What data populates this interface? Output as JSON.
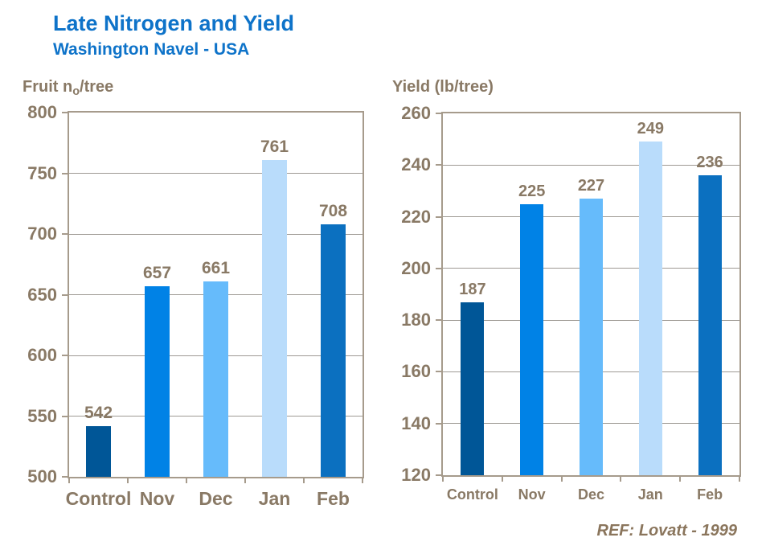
{
  "page": {
    "title": "Late Nitrogen and Yield",
    "subtitle": "Washington Navel - USA",
    "reference": "REF: Lovatt - 1999"
  },
  "colors": {
    "title_text": "#0E73C9",
    "label_text": "#897965",
    "reference_text": "#8A755C",
    "axis_border": "#A69B8C",
    "gridline": "#9E9A94",
    "bar_control": "#005697",
    "bar_nov": "#0082E6",
    "bar_dec": "#66BBFB",
    "bar_jan": "#B9DCFB",
    "bar_feb": "#0B70C0"
  },
  "chart_data": [
    {
      "type": "bar",
      "title": "Fruit no/tree",
      "title_parts": {
        "pre": "Fruit n",
        "sub": "o",
        "post": "/tree"
      },
      "categories": [
        "Control",
        "Nov",
        "Dec",
        "Jan",
        "Feb"
      ],
      "values": [
        542,
        657,
        661,
        761,
        708
      ],
      "ylim": [
        500,
        800
      ],
      "yticks": [
        500,
        550,
        600,
        650,
        700,
        750,
        800
      ],
      "grid": true,
      "legend": false,
      "data_labels": true,
      "bar_colors": [
        "#005697",
        "#0082E6",
        "#66BBFB",
        "#B9DCFB",
        "#0B70C0"
      ]
    },
    {
      "type": "bar",
      "title": "Yield (lb/tree)",
      "title_parts": {
        "pre": "Yield (lb/tree)"
      },
      "categories": [
        "Control",
        "Nov",
        "Dec",
        "Jan",
        "Feb"
      ],
      "values": [
        187,
        225,
        227,
        249,
        236
      ],
      "ylim": [
        120,
        260
      ],
      "yticks": [
        120,
        140,
        160,
        180,
        200,
        220,
        240,
        260
      ],
      "grid": true,
      "legend": false,
      "data_labels": true,
      "bar_colors": [
        "#005697",
        "#0082E6",
        "#66BBFB",
        "#B9DCFB",
        "#0B70C0"
      ]
    }
  ]
}
